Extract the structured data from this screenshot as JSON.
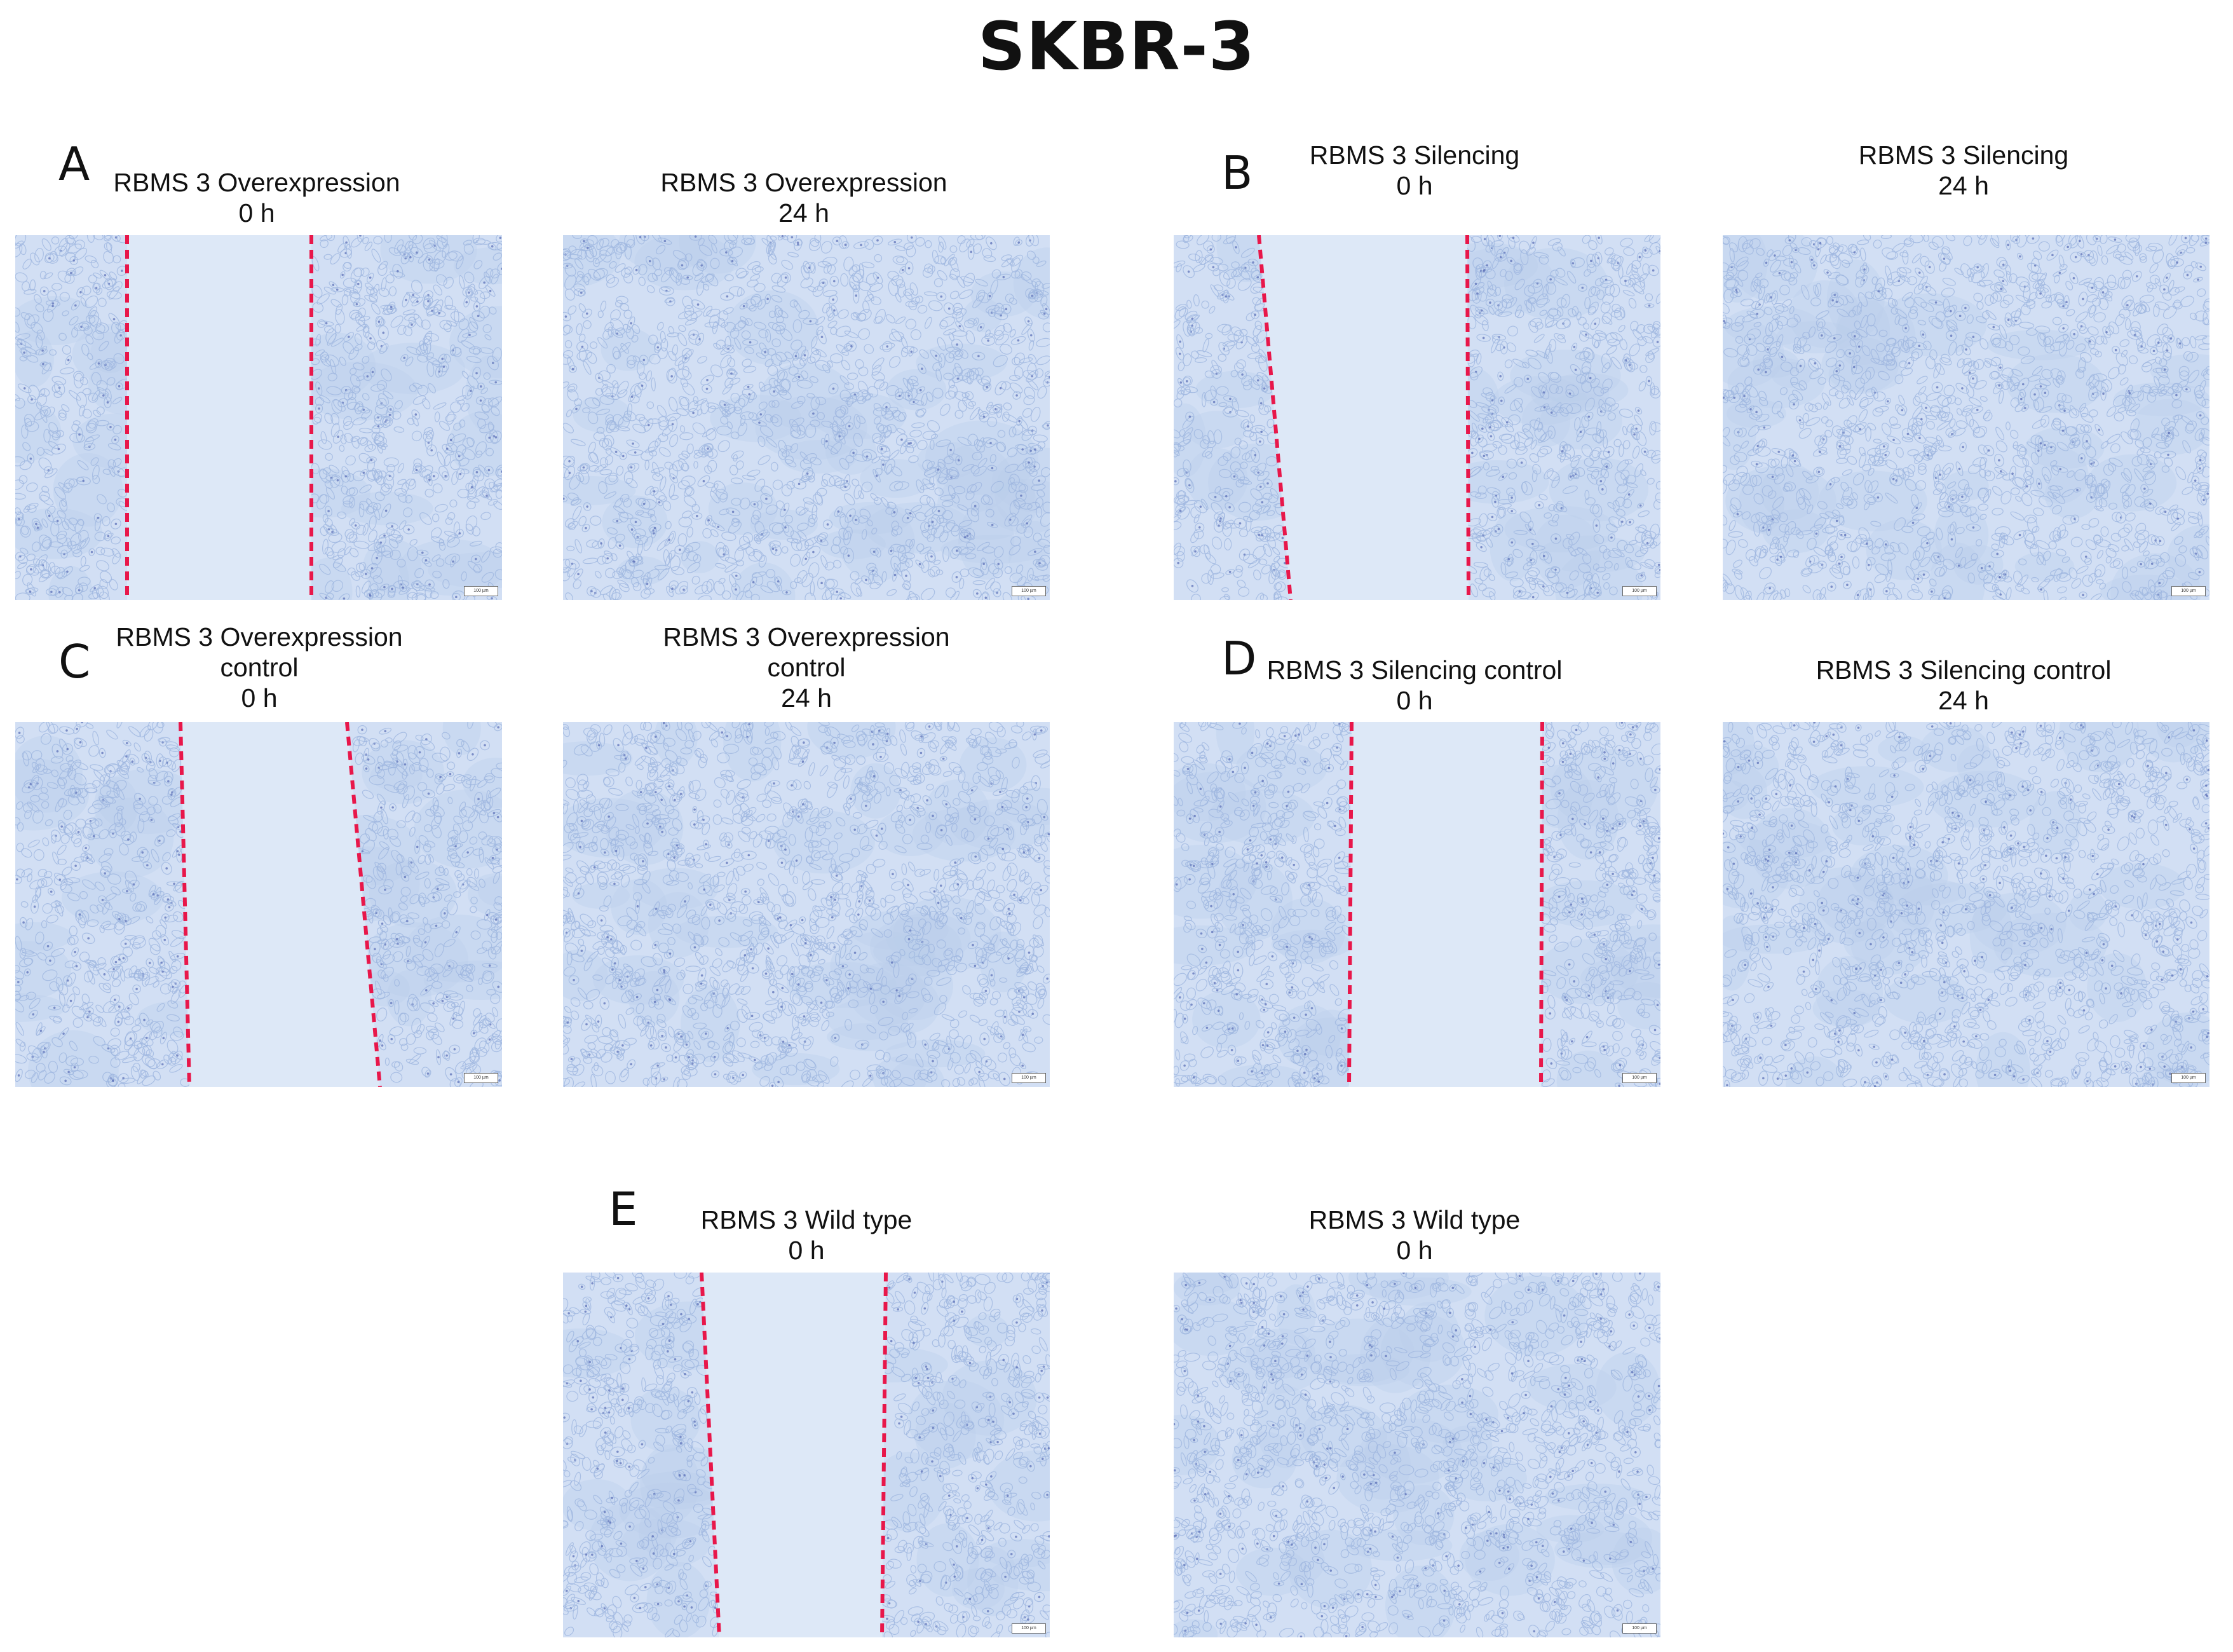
{
  "figure": {
    "title": "SKBR-3",
    "colors": {
      "background": "#ffffff",
      "cell_field": "#d2dff4",
      "cell_dense": "#b9cdea",
      "cell_outline": "#9fb6e0",
      "nucleus": "#5e72b8",
      "wound_gap": "#dde8f7",
      "wound_marker": "#e8174a"
    },
    "panels": [
      {
        "letter": "A",
        "images": [
          {
            "caption": [
              "RBMS 3 Overexpression",
              "0 h"
            ],
            "scale_label": "100 µm"
          },
          {
            "caption": [
              "RBMS 3 Overexpression",
              "24 h"
            ],
            "scale_label": "100 µm"
          }
        ]
      },
      {
        "letter": "B",
        "images": [
          {
            "caption": [
              "RBMS 3 Silencing",
              "0 h"
            ],
            "scale_label": "100 µm"
          },
          {
            "caption": [
              "RBMS 3 Silencing",
              "24 h"
            ],
            "scale_label": "100 µm"
          }
        ]
      },
      {
        "letter": "C",
        "images": [
          {
            "caption": [
              "RBMS 3 Overexpression",
              "control",
              "0 h"
            ],
            "scale_label": "100 µm"
          },
          {
            "caption": [
              "RBMS 3 Overexpression",
              "control",
              "24 h"
            ],
            "scale_label": "100 µm"
          }
        ]
      },
      {
        "letter": "D",
        "images": [
          {
            "caption": [
              "RBMS 3 Silencing control",
              "0 h"
            ],
            "scale_label": "100 µm"
          },
          {
            "caption": [
              "RBMS 3 Silencing control",
              "24 h"
            ],
            "scale_label": "100 µm"
          }
        ]
      },
      {
        "letter": "E",
        "images": [
          {
            "caption": [
              "RBMS 3 Wild type",
              "0 h"
            ],
            "scale_label": "100 µm"
          },
          {
            "caption": [
              "RBMS 3 Wild type",
              "0 h"
            ],
            "scale_label": "100 µm"
          }
        ]
      }
    ]
  }
}
